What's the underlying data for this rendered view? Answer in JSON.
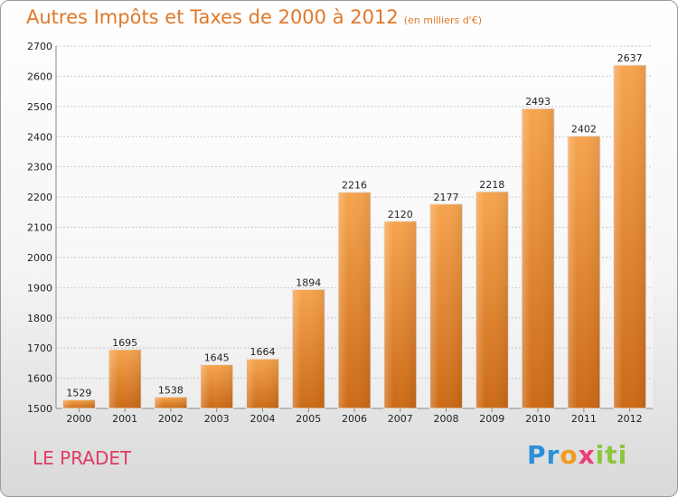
{
  "header": {
    "title": "Autres Impôts et Taxes de 2000 à 2012",
    "subtitle": "(en milliers d'€)"
  },
  "footer": {
    "place": "LE PRADET",
    "logo": {
      "p1": "Pr",
      "p2": "o",
      "p3": "x",
      "p4": "iti"
    }
  },
  "colors": {
    "bar_top": "#f7a44e",
    "bar_bottom": "#cc6a16",
    "title": "#e0782a",
    "place": "#e03c64"
  },
  "chart_data": {
    "type": "bar",
    "title": "Autres Impôts et Taxes de 2000 à 2012",
    "subtitle": "(en milliers d'€)",
    "categories": [
      "2000",
      "2001",
      "2002",
      "2003",
      "2004",
      "2005",
      "2006",
      "2007",
      "2008",
      "2009",
      "2010",
      "2011",
      "2012"
    ],
    "values": [
      1529,
      1695,
      1538,
      1645,
      1664,
      1894,
      2216,
      2120,
      2177,
      2218,
      2493,
      2402,
      2637
    ],
    "ylim": [
      1500,
      2700
    ],
    "yticks": [
      1500,
      1600,
      1700,
      1800,
      1900,
      2000,
      2100,
      2200,
      2300,
      2400,
      2500,
      2600,
      2700
    ],
    "grid": true
  }
}
